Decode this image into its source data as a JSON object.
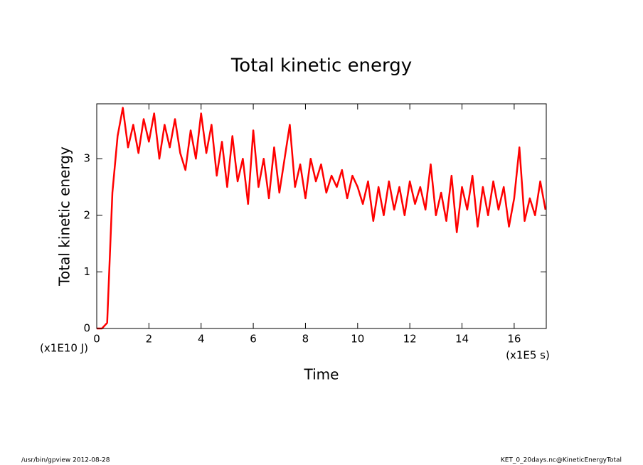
{
  "chart_data": {
    "type": "line",
    "title": "Total kinetic energy",
    "y_label": "Total kinetic energy",
    "x_label": "Time",
    "y_unit": "(x1E10 J)",
    "x_unit": "(x1E5 s)",
    "x": [
      0,
      0.2,
      0.4,
      0.6,
      0.8,
      1.0,
      1.2,
      1.4,
      1.6,
      1.8,
      2.0,
      2.2,
      2.4,
      2.6,
      2.8,
      3.0,
      3.2,
      3.4,
      3.6,
      3.8,
      4.0,
      4.2,
      4.4,
      4.6,
      4.8,
      5.0,
      5.2,
      5.4,
      5.6,
      5.8,
      6.0,
      6.2,
      6.4,
      6.6,
      6.8,
      7.0,
      7.2,
      7.4,
      7.6,
      7.8,
      8.0,
      8.2,
      8.4,
      8.6,
      8.8,
      9.0,
      9.2,
      9.4,
      9.6,
      9.8,
      10.0,
      10.2,
      10.4,
      10.6,
      10.8,
      11.0,
      11.2,
      11.4,
      11.6,
      11.8,
      12.0,
      12.2,
      12.4,
      12.6,
      12.8,
      13.0,
      13.2,
      13.4,
      13.6,
      13.8,
      14.0,
      14.2,
      14.4,
      14.6,
      14.8,
      15.0,
      15.2,
      15.4,
      15.6,
      15.8,
      16.0,
      16.2,
      16.4,
      16.6,
      16.8,
      17.0,
      17.2
    ],
    "series": [
      {
        "name": "Total kinetic energy",
        "color": "#ff0000",
        "values": [
          0,
          0,
          0.1,
          2.4,
          3.4,
          3.9,
          3.2,
          3.6,
          3.1,
          3.7,
          3.3,
          3.8,
          3.0,
          3.6,
          3.2,
          3.7,
          3.1,
          2.8,
          3.5,
          3.0,
          3.8,
          3.1,
          3.6,
          2.7,
          3.3,
          2.5,
          3.4,
          2.6,
          3.0,
          2.2,
          3.5,
          2.5,
          3.0,
          2.3,
          3.2,
          2.4,
          3.0,
          3.6,
          2.5,
          2.9,
          2.3,
          3.0,
          2.6,
          2.9,
          2.4,
          2.7,
          2.5,
          2.8,
          2.3,
          2.7,
          2.5,
          2.2,
          2.6,
          1.9,
          2.5,
          2.0,
          2.6,
          2.1,
          2.5,
          2.0,
          2.6,
          2.2,
          2.5,
          2.1,
          2.9,
          2.0,
          2.4,
          1.9,
          2.7,
          1.7,
          2.5,
          2.1,
          2.7,
          1.8,
          2.5,
          2.0,
          2.6,
          2.1,
          2.5,
          1.8,
          2.3,
          3.2,
          1.9,
          2.3,
          2.0,
          2.6,
          2.1
        ]
      }
    ],
    "xlim": [
      0,
      17.23
    ],
    "ylim": [
      0,
      3.97
    ],
    "xticks": [
      0,
      2,
      4,
      6,
      8,
      10,
      12,
      14,
      16
    ],
    "yticks": [
      0,
      1,
      2,
      3
    ],
    "footer_left": "/usr/bin/gpview   2012-08-28",
    "footer_right": "KET_0_20days.nc@KineticEnergyTotal"
  }
}
